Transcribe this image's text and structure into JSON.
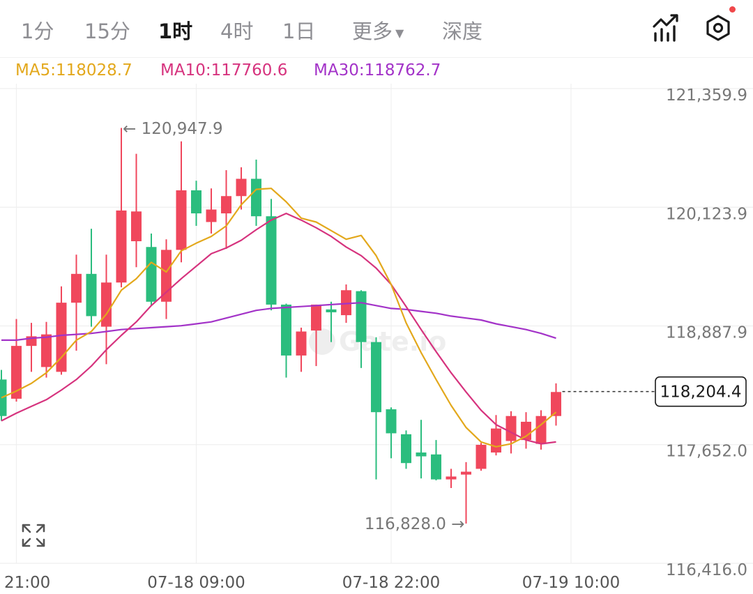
{
  "tabs": [
    {
      "label": "1分",
      "active": false
    },
    {
      "label": "15分",
      "active": false
    },
    {
      "label": "1时",
      "active": true
    },
    {
      "label": "4时",
      "active": false
    },
    {
      "label": "1日",
      "active": false
    },
    {
      "label": "更多",
      "active": false,
      "dropdown": true
    },
    {
      "label": "深度",
      "active": false
    }
  ],
  "toolbar": {
    "indicator_icon": "chart-line-icon",
    "settings_icon": "hexagon-settings-icon",
    "settings_badge_color": "#f0474a"
  },
  "ma_legend": [
    {
      "label": "MA5:118028.7",
      "color": "#e3a81c"
    },
    {
      "label": "MA10:117760.6",
      "color": "#d6337e"
    },
    {
      "label": "MA30:118762.7",
      "color": "#a333c8"
    }
  ],
  "watermark": "Gate.io",
  "chart_data": {
    "type": "candlestick",
    "colors": {
      "up": "#f0475c",
      "down": "#2bbd7e",
      "ma5": "#e3a81c",
      "ma10": "#d6337e",
      "ma30": "#a333c8"
    },
    "y_ticks": [
      "121,359.9",
      "120,123.9",
      "118,887.9",
      "117,652.0",
      "116,416.0"
    ],
    "y_tick_values": [
      121359.9,
      120123.9,
      118887.9,
      117652.0,
      116416.0
    ],
    "ylim": [
      116416.0,
      121359.9
    ],
    "x_ticks": [
      {
        "label": "21:00",
        "index": 1
      },
      {
        "label": "07-18 09:00",
        "index": 13
      },
      {
        "label": "07-18 22:00",
        "index": 26
      },
      {
        "label": "07-19 10:00",
        "index": 38
      }
    ],
    "high_annotation": {
      "label": "← 120,947.9",
      "index": 8,
      "value": 120947.9
    },
    "low_annotation": {
      "label": "116,828.0 →",
      "index": 31,
      "value": 116828.0
    },
    "current_price": {
      "label": "118,204.4",
      "value": 118204.4
    },
    "candles": [
      {
        "o": 118330,
        "h": 118430,
        "c": 117950,
        "l": 117900
      },
      {
        "o": 118130,
        "h": 118960,
        "c": 118680,
        "l": 118100
      },
      {
        "o": 118680,
        "h": 118920,
        "c": 118780,
        "l": 118410
      },
      {
        "o": 118460,
        "h": 118930,
        "c": 118800,
        "l": 118350
      },
      {
        "o": 118410,
        "h": 119300,
        "c": 119130,
        "l": 118380
      },
      {
        "o": 119130,
        "h": 119630,
        "c": 119430,
        "l": 118630
      },
      {
        "o": 119430,
        "h": 119900,
        "c": 118990,
        "l": 118880
      },
      {
        "o": 118880,
        "h": 119630,
        "c": 119340,
        "l": 118490
      },
      {
        "o": 119340,
        "h": 120950,
        "c": 120090,
        "l": 119290
      },
      {
        "o": 119770,
        "h": 120680,
        "c": 120080,
        "l": 119500
      },
      {
        "o": 119710,
        "h": 119850,
        "c": 119140,
        "l": 119100
      },
      {
        "o": 119140,
        "h": 119790,
        "c": 119680,
        "l": 118960
      },
      {
        "o": 119680,
        "h": 120810,
        "c": 120300,
        "l": 119550
      },
      {
        "o": 120300,
        "h": 120400,
        "c": 120060,
        "l": 119930
      },
      {
        "o": 119970,
        "h": 120320,
        "c": 120100,
        "l": 119850
      },
      {
        "o": 120060,
        "h": 120510,
        "c": 120240,
        "l": 119690
      },
      {
        "o": 120240,
        "h": 120540,
        "c": 120420,
        "l": 120100
      },
      {
        "o": 120420,
        "h": 120620,
        "c": 120030,
        "l": 119930
      },
      {
        "o": 120030,
        "h": 120210,
        "c": 119110,
        "l": 119050
      },
      {
        "o": 119110,
        "h": 119120,
        "c": 118580,
        "l": 118350
      },
      {
        "o": 118580,
        "h": 118870,
        "c": 118830,
        "l": 118410
      },
      {
        "o": 118840,
        "h": 119110,
        "c": 119110,
        "l": 118470
      },
      {
        "o": 119060,
        "h": 119140,
        "c": 119030,
        "l": 118720
      },
      {
        "o": 119000,
        "h": 119320,
        "c": 119260,
        "l": 118920
      },
      {
        "o": 119250,
        "h": 119260,
        "c": 118720,
        "l": 118450
      },
      {
        "o": 118720,
        "h": 118770,
        "c": 117990,
        "l": 117290
      },
      {
        "o": 118020,
        "h": 118040,
        "c": 117770,
        "l": 117510
      },
      {
        "o": 117760,
        "h": 117800,
        "c": 117460,
        "l": 117400
      },
      {
        "o": 117570,
        "h": 117910,
        "c": 117530,
        "l": 117300
      },
      {
        "o": 117550,
        "h": 117700,
        "c": 117290,
        "l": 117280
      },
      {
        "o": 117290,
        "h": 117400,
        "c": 117320,
        "l": 117200
      },
      {
        "o": 117340,
        "h": 117470,
        "c": 117370,
        "l": 116830
      },
      {
        "o": 117400,
        "h": 117670,
        "c": 117650,
        "l": 117380
      },
      {
        "o": 117570,
        "h": 117960,
        "c": 117820,
        "l": 117540
      },
      {
        "o": 117690,
        "h": 118000,
        "c": 117950,
        "l": 117560
      },
      {
        "o": 117700,
        "h": 117990,
        "c": 117890,
        "l": 117610
      },
      {
        "o": 117660,
        "h": 118010,
        "c": 117950,
        "l": 117600
      },
      {
        "o": 117950,
        "h": 118290,
        "c": 118200,
        "l": 117850
      }
    ],
    "ma5": [
      118140,
      118210,
      118290,
      118400,
      118560,
      118740,
      118830,
      119010,
      119260,
      119380,
      119550,
      119450,
      119670,
      119750,
      119820,
      119930,
      120150,
      120310,
      120320,
      120180,
      120010,
      119970,
      119880,
      119790,
      119830,
      119620,
      119320,
      118920,
      118610,
      118330,
      118060,
      117830,
      117680,
      117630,
      117660,
      117740,
      117860,
      117990
    ],
    "ma10": [
      117900,
      117980,
      118050,
      118120,
      118220,
      118330,
      118470,
      118640,
      118790,
      118930,
      119100,
      119240,
      119380,
      119510,
      119640,
      119700,
      119780,
      119890,
      119990,
      120060,
      119990,
      119910,
      119820,
      119710,
      119620,
      119490,
      119320,
      119090,
      118850,
      118620,
      118400,
      118200,
      118010,
      117860,
      117780,
      117700,
      117660,
      117680
    ],
    "ma30": [
      118740,
      118740,
      118760,
      118770,
      118790,
      118800,
      118810,
      118830,
      118850,
      118860,
      118870,
      118880,
      118890,
      118910,
      118930,
      118970,
      119010,
      119050,
      119070,
      119080,
      119090,
      119100,
      119110,
      119120,
      119130,
      119100,
      119070,
      119060,
      119040,
      119020,
      118990,
      118970,
      118950,
      118910,
      118880,
      118850,
      118810,
      118760
    ]
  }
}
